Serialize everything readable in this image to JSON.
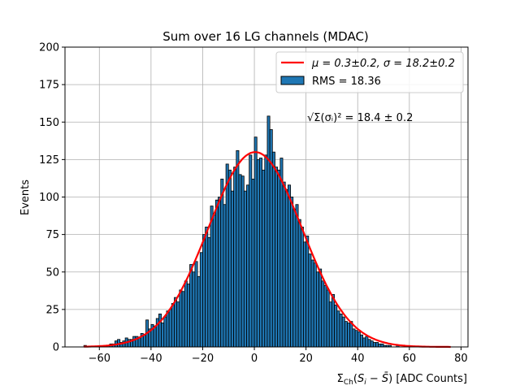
{
  "chart_data": {
    "type": "bar",
    "title": "Sum over 16 LG channels (MDAC)",
    "xlabel": "Σ_Ch(S_i − S̄) [ADC Counts]",
    "ylabel": "Events",
    "xlim": [
      -73.3,
      82.7
    ],
    "ylim": [
      0,
      200
    ],
    "grid": true,
    "bin_width": 1,
    "bin_start": -66,
    "values": [
      1,
      0,
      0,
      0,
      0,
      0,
      0,
      0,
      1,
      1,
      2,
      2,
      4,
      5,
      3,
      4,
      6,
      5,
      5,
      7,
      7,
      6,
      9,
      8,
      18,
      12,
      15,
      14,
      19,
      22,
      16,
      20,
      24,
      25,
      29,
      33,
      30,
      38,
      37,
      44,
      42,
      55,
      50,
      57,
      47,
      63,
      75,
      80,
      73,
      94,
      88,
      98,
      100,
      112,
      95,
      122,
      118,
      104,
      120,
      131,
      115,
      114,
      104,
      108,
      128,
      112,
      140,
      125,
      126,
      118,
      128,
      154,
      145,
      130,
      120,
      118,
      126,
      110,
      105,
      108,
      100,
      92,
      95,
      85,
      80,
      70,
      74,
      62,
      58,
      56,
      50,
      52,
      44,
      41,
      38,
      30,
      35,
      28,
      24,
      22,
      20,
      17,
      16,
      17,
      12,
      11,
      10,
      8,
      6,
      7,
      5,
      4,
      3,
      3,
      2,
      2,
      1,
      1,
      1,
      0,
      0,
      1
    ],
    "fit": {
      "mu": 0.3,
      "sigma": 18.2,
      "amplitude": 130,
      "range": [
        -66,
        76
      ]
    },
    "xticks": [
      -60,
      -40,
      -20,
      0,
      20,
      40,
      60,
      80
    ],
    "yticks": [
      0,
      25,
      50,
      75,
      100,
      125,
      150,
      175,
      200
    ],
    "legend": {
      "placement": "top-right",
      "fit_label_mu": "μ = 0.3±0.2, σ = 18.2±0.2",
      "hist_label": "RMS = 18.36"
    },
    "annotation": "√Σ(σᵢ)² = 18.4 ± 0.2",
    "colors": {
      "bar": "#1f77b4",
      "fit": "#ff0000",
      "grid": "#b0b0b0"
    }
  }
}
